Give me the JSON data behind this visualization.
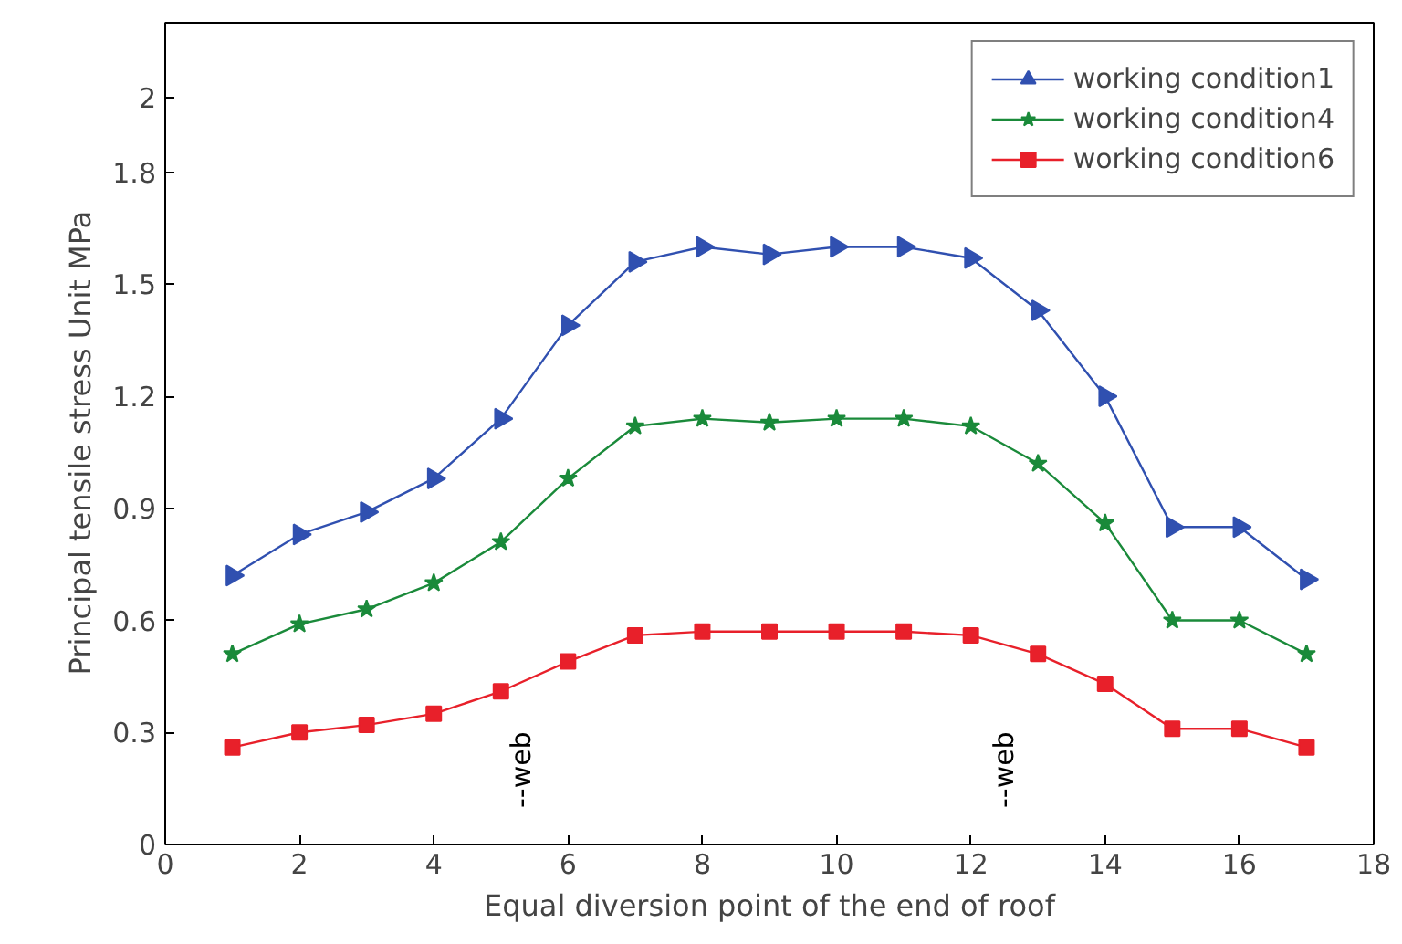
{
  "chart_data": {
    "type": "line",
    "xlabel": "Equal diversion point of the end of roof",
    "ylabel": "Principal tensile stress   Unit MPa",
    "x": [
      1,
      2,
      3,
      4,
      5,
      6,
      7,
      8,
      9,
      10,
      11,
      12,
      13,
      14,
      15,
      16,
      17
    ],
    "series": [
      {
        "name": "working condition1",
        "color": "#3050b0",
        "marker": "triangle",
        "values": [
          0.72,
          0.83,
          0.89,
          0.98,
          1.14,
          1.39,
          1.56,
          1.6,
          1.58,
          1.6,
          1.6,
          1.57,
          1.43,
          1.2,
          0.85,
          0.85,
          0.71
        ]
      },
      {
        "name": "working condition4",
        "color": "#1a8a3a",
        "marker": "star",
        "values": [
          0.51,
          0.59,
          0.63,
          0.7,
          0.81,
          0.98,
          1.12,
          1.14,
          1.13,
          1.14,
          1.14,
          1.12,
          1.02,
          0.86,
          0.6,
          0.6,
          0.51
        ]
      },
      {
        "name": "working condition6",
        "color": "#e8202a",
        "marker": "square",
        "values": [
          0.26,
          0.3,
          0.32,
          0.35,
          0.41,
          0.49,
          0.56,
          0.57,
          0.57,
          0.57,
          0.57,
          0.56,
          0.51,
          0.43,
          0.31,
          0.31,
          0.26
        ]
      }
    ],
    "annotations": [
      "--web",
      "--web"
    ],
    "xlim": [
      0,
      18
    ],
    "xticks": [
      0,
      2,
      4,
      6,
      8,
      10,
      12,
      14,
      16,
      18
    ],
    "ylim": [
      0,
      2.2
    ],
    "yticks": [
      0,
      0.3,
      0.6,
      0.9,
      1.2,
      1.5,
      1.8,
      2
    ],
    "grid": false,
    "legend": "top right",
    "line_style": "solid"
  }
}
